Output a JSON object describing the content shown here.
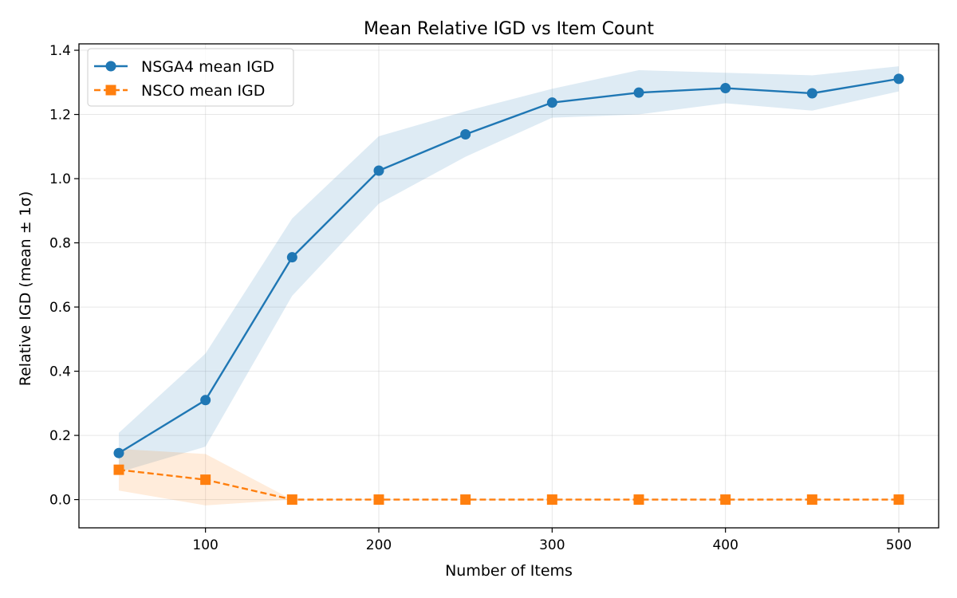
{
  "chart_data": {
    "type": "line",
    "title": "Mean Relative IGD vs Item Count",
    "xlabel": "Number of Items",
    "ylabel": "Relative IGD (mean ± 1σ)",
    "xlim": [
      27,
      523
    ],
    "ylim": [
      -0.088,
      1.42
    ],
    "xticks": [
      100,
      200,
      300,
      400,
      500
    ],
    "yticks": [
      0.0,
      0.2,
      0.4,
      0.6,
      0.8,
      1.0,
      1.2,
      1.4
    ],
    "xtick_labels": [
      "100",
      "200",
      "300",
      "400",
      "500"
    ],
    "ytick_labels": [
      "0.0",
      "0.2",
      "0.4",
      "0.6",
      "0.8",
      "1.0",
      "1.2",
      "1.4"
    ],
    "grid": true,
    "legend_position": "top-left",
    "x": [
      50,
      100,
      150,
      200,
      250,
      300,
      350,
      400,
      450,
      500
    ],
    "series": [
      {
        "name": "NSGA4 mean IGD",
        "color": "#1f77b4",
        "band_color": "#1f77b4",
        "marker": "circle",
        "linestyle": "solid",
        "values": [
          0.145,
          0.31,
          0.755,
          1.025,
          1.138,
          1.237,
          1.268,
          1.282,
          1.266,
          1.311
        ],
        "lower": [
          0.085,
          0.165,
          0.635,
          0.922,
          1.068,
          1.19,
          1.2,
          1.235,
          1.212,
          1.272
        ],
        "upper": [
          0.208,
          0.455,
          0.876,
          1.132,
          1.21,
          1.28,
          1.338,
          1.33,
          1.322,
          1.35
        ]
      },
      {
        "name": "NSCO mean IGD",
        "color": "#ff7f0e",
        "band_color": "#ff7f0e",
        "marker": "square",
        "linestyle": "dashed",
        "values": [
          0.093,
          0.062,
          0.0,
          0.0,
          0.0,
          0.0,
          0.0,
          0.0,
          0.0,
          0.0
        ],
        "lower": [
          0.028,
          -0.018,
          0.0,
          0.0,
          0.0,
          0.0,
          0.0,
          0.0,
          0.0,
          0.0
        ],
        "upper": [
          0.158,
          0.142,
          0.0,
          0.0,
          0.0,
          0.0,
          0.0,
          0.0,
          0.0,
          0.0
        ]
      }
    ]
  }
}
